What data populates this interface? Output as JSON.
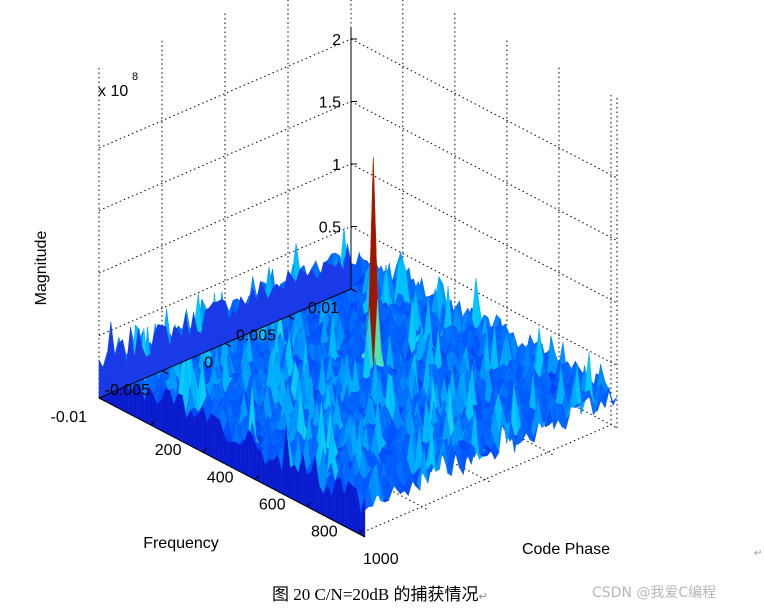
{
  "caption": "图 20 C/N=20dB 的捕获情况",
  "caption_arrow": "↵",
  "corner_mark": "↵",
  "watermark": "CSDN @我爱C编程",
  "chart_data": {
    "type": "surface",
    "title": "",
    "xlabel": "Code Phase",
    "ylabel": "Frequency",
    "zlabel": "Magnitude",
    "z_scale_label": "x 10",
    "z_scale_exponent": "8",
    "x_ticks": [
      "200",
      "400",
      "600",
      "800",
      "1000"
    ],
    "y_ticks": [
      "0.01",
      "0.005",
      "0",
      "-0.005",
      "-0.01"
    ],
    "z_ticks": [
      "0.5",
      "1",
      "1.5",
      "2"
    ],
    "xlim": [
      1,
      1023
    ],
    "ylim": [
      -0.01,
      0.01
    ],
    "zlim": [
      0,
      2
    ],
    "grid": true,
    "peak": {
      "code_phase": 480,
      "frequency": 0.002,
      "magnitude": 1.93
    },
    "noise_floor_magnitude": 0.45,
    "colormap": [
      "#0000c8",
      "#0050ff",
      "#00c8ff",
      "#a0ff60",
      "#ffff00",
      "#ff8000",
      "#8b0000"
    ]
  }
}
